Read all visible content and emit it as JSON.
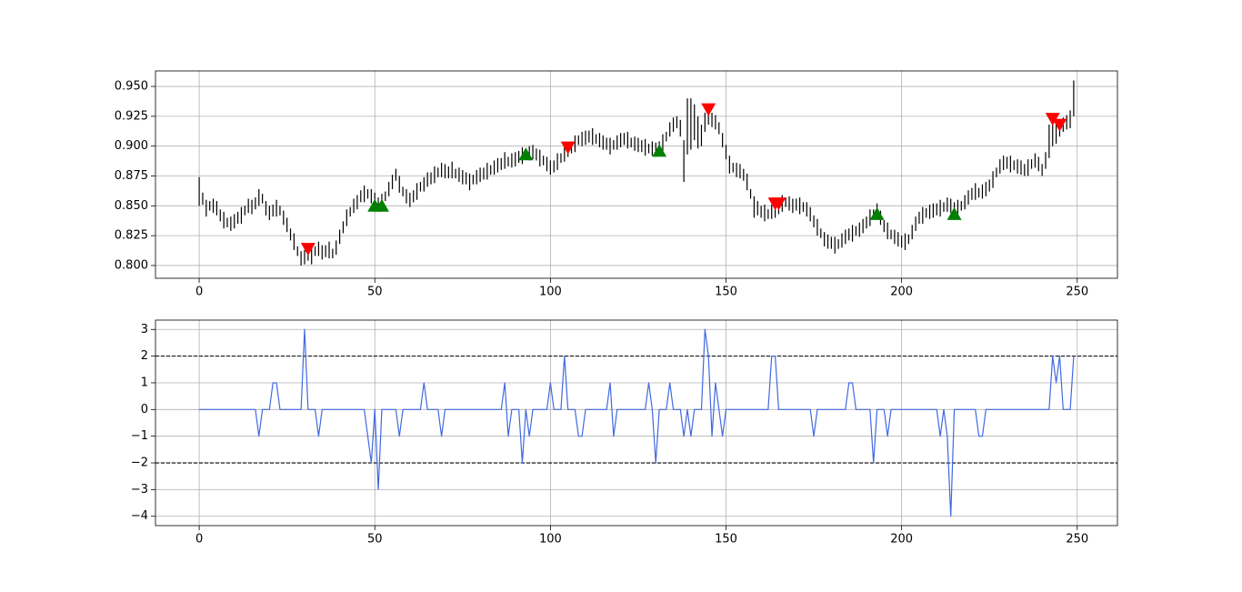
{
  "chart_data": [
    {
      "type": "ohlc",
      "color": "#000000",
      "grid": true,
      "xlim": [
        -12.45,
        261.45
      ],
      "ylim": [
        0.7893,
        0.963
      ],
      "xticks": [
        0,
        50,
        100,
        150,
        200,
        250
      ],
      "yticks": [
        {
          "value": 0.8,
          "label": "0.800"
        },
        {
          "value": 0.825,
          "label": "0.825"
        },
        {
          "value": 0.85,
          "label": "0.850"
        },
        {
          "value": 0.875,
          "label": "0.875"
        },
        {
          "value": 0.9,
          "label": "0.900"
        },
        {
          "value": 0.925,
          "label": "0.925"
        },
        {
          "value": 0.95,
          "label": "0.950"
        }
      ],
      "x": [
        0,
        1,
        2,
        3,
        4,
        5,
        6,
        7,
        8,
        9,
        10,
        11,
        12,
        13,
        14,
        15,
        16,
        17,
        18,
        19,
        20,
        21,
        22,
        23,
        24,
        25,
        26,
        27,
        28,
        29,
        30,
        31,
        32,
        33,
        34,
        35,
        36,
        37,
        38,
        39,
        40,
        41,
        42,
        43,
        44,
        45,
        46,
        47,
        48,
        49,
        50,
        51,
        52,
        53,
        54,
        55,
        56,
        57,
        58,
        59,
        60,
        61,
        62,
        63,
        64,
        65,
        66,
        67,
        68,
        69,
        70,
        71,
        72,
        73,
        74,
        75,
        76,
        77,
        78,
        79,
        80,
        81,
        82,
        83,
        84,
        85,
        86,
        87,
        88,
        89,
        90,
        91,
        92,
        93,
        94,
        95,
        96,
        97,
        98,
        99,
        100,
        101,
        102,
        103,
        104,
        105,
        106,
        107,
        108,
        109,
        110,
        111,
        112,
        113,
        114,
        115,
        116,
        117,
        118,
        119,
        120,
        121,
        122,
        123,
        124,
        125,
        126,
        127,
        128,
        129,
        130,
        131,
        132,
        133,
        134,
        135,
        136,
        137,
        138,
        139,
        140,
        141,
        142,
        143,
        144,
        145,
        146,
        147,
        148,
        149,
        150,
        151,
        152,
        153,
        154,
        155,
        156,
        157,
        158,
        159,
        160,
        161,
        162,
        163,
        164,
        165,
        166,
        167,
        168,
        169,
        170,
        171,
        172,
        173,
        174,
        175,
        176,
        177,
        178,
        179,
        180,
        181,
        182,
        183,
        184,
        185,
        186,
        187,
        188,
        189,
        190,
        191,
        192,
        193,
        194,
        195,
        196,
        197,
        198,
        199,
        200,
        201,
        202,
        203,
        204,
        205,
        206,
        207,
        208,
        209,
        210,
        211,
        212,
        213,
        214,
        215,
        216,
        217,
        218,
        219,
        220,
        221,
        222,
        223,
        224,
        225,
        226,
        227,
        228,
        229,
        230,
        231,
        232,
        233,
        234,
        235,
        236,
        237,
        238,
        239,
        240,
        241,
        242,
        243,
        244,
        245,
        246,
        247,
        248,
        249
      ],
      "low": [
        0.85,
        0.851,
        0.841,
        0.846,
        0.844,
        0.842,
        0.837,
        0.831,
        0.832,
        0.829,
        0.831,
        0.835,
        0.835,
        0.842,
        0.844,
        0.843,
        0.847,
        0.85,
        0.852,
        0.842,
        0.838,
        0.841,
        0.841,
        0.842,
        0.834,
        0.828,
        0.821,
        0.813,
        0.808,
        0.8,
        0.801,
        0.804,
        0.801,
        0.808,
        0.808,
        0.805,
        0.807,
        0.806,
        0.806,
        0.809,
        0.818,
        0.827,
        0.833,
        0.841,
        0.844,
        0.847,
        0.853,
        0.853,
        0.856,
        0.852,
        0.849,
        0.847,
        0.846,
        0.854,
        0.858,
        0.864,
        0.871,
        0.861,
        0.858,
        0.852,
        0.849,
        0.853,
        0.855,
        0.862,
        0.862,
        0.866,
        0.868,
        0.869,
        0.874,
        0.874,
        0.873,
        0.873,
        0.873,
        0.873,
        0.87,
        0.868,
        0.868,
        0.863,
        0.868,
        0.868,
        0.87,
        0.872,
        0.872,
        0.876,
        0.876,
        0.878,
        0.88,
        0.881,
        0.883,
        0.882,
        0.883,
        0.886,
        0.885,
        0.889,
        0.888,
        0.889,
        0.888,
        0.883,
        0.884,
        0.879,
        0.876,
        0.878,
        0.88,
        0.886,
        0.887,
        0.891,
        0.894,
        0.895,
        0.901,
        0.9,
        0.901,
        0.903,
        0.901,
        0.902,
        0.899,
        0.897,
        0.897,
        0.893,
        0.897,
        0.897,
        0.899,
        0.901,
        0.898,
        0.899,
        0.896,
        0.895,
        0.895,
        0.892,
        0.894,
        0.892,
        0.891,
        0.894,
        0.896,
        0.904,
        0.908,
        0.912,
        0.915,
        0.908,
        0.87,
        0.893,
        0.897,
        0.905,
        0.898,
        0.9,
        0.912,
        0.918,
        0.916,
        0.914,
        0.91,
        0.899,
        0.889,
        0.877,
        0.878,
        0.874,
        0.873,
        0.871,
        0.863,
        0.856,
        0.84,
        0.842,
        0.84,
        0.837,
        0.839,
        0.839,
        0.84,
        0.843,
        0.845,
        0.849,
        0.846,
        0.844,
        0.846,
        0.843,
        0.845,
        0.841,
        0.837,
        0.832,
        0.825,
        0.823,
        0.816,
        0.814,
        0.814,
        0.81,
        0.814,
        0.815,
        0.818,
        0.821,
        0.82,
        0.825,
        0.824,
        0.827,
        0.831,
        0.833,
        0.839,
        0.84,
        0.834,
        0.828,
        0.822,
        0.822,
        0.818,
        0.816,
        0.815,
        0.813,
        0.818,
        0.822,
        0.829,
        0.835,
        0.835,
        0.84,
        0.839,
        0.84,
        0.842,
        0.841,
        0.845,
        0.845,
        0.844,
        0.843,
        0.841,
        0.846,
        0.847,
        0.851,
        0.855,
        0.855,
        0.857,
        0.856,
        0.858,
        0.862,
        0.865,
        0.874,
        0.877,
        0.88,
        0.881,
        0.878,
        0.88,
        0.877,
        0.876,
        0.875,
        0.875,
        0.881,
        0.882,
        0.879,
        0.875,
        0.881,
        0.89,
        0.9,
        0.902,
        0.908,
        0.912,
        0.914,
        0.915,
        0.925
      ],
      "high": [
        0.874,
        0.861,
        0.855,
        0.854,
        0.856,
        0.854,
        0.847,
        0.845,
        0.84,
        0.841,
        0.843,
        0.845,
        0.849,
        0.85,
        0.856,
        0.855,
        0.857,
        0.864,
        0.86,
        0.854,
        0.85,
        0.851,
        0.855,
        0.85,
        0.846,
        0.84,
        0.831,
        0.827,
        0.816,
        0.812,
        0.813,
        0.814,
        0.815,
        0.816,
        0.82,
        0.817,
        0.817,
        0.82,
        0.814,
        0.821,
        0.83,
        0.837,
        0.847,
        0.849,
        0.856,
        0.859,
        0.863,
        0.867,
        0.864,
        0.864,
        0.861,
        0.857,
        0.86,
        0.862,
        0.87,
        0.876,
        0.881,
        0.875,
        0.866,
        0.864,
        0.861,
        0.863,
        0.869,
        0.87,
        0.874,
        0.878,
        0.878,
        0.883,
        0.882,
        0.886,
        0.885,
        0.883,
        0.887,
        0.881,
        0.882,
        0.88,
        0.878,
        0.877,
        0.876,
        0.88,
        0.882,
        0.882,
        0.886,
        0.884,
        0.888,
        0.89,
        0.89,
        0.895,
        0.891,
        0.894,
        0.895,
        0.896,
        0.899,
        0.897,
        0.9,
        0.901,
        0.898,
        0.897,
        0.892,
        0.891,
        0.888,
        0.888,
        0.894,
        0.894,
        0.899,
        0.903,
        0.904,
        0.909,
        0.909,
        0.912,
        0.913,
        0.913,
        0.915,
        0.91,
        0.911,
        0.909,
        0.907,
        0.907,
        0.905,
        0.909,
        0.911,
        0.911,
        0.912,
        0.907,
        0.908,
        0.907,
        0.905,
        0.906,
        0.902,
        0.904,
        0.903,
        0.904,
        0.91,
        0.912,
        0.92,
        0.924,
        0.925,
        0.922,
        0.905,
        0.94,
        0.94,
        0.935,
        0.925,
        0.918,
        0.928,
        0.932,
        0.928,
        0.926,
        0.92,
        0.911,
        0.901,
        0.892,
        0.886,
        0.886,
        0.885,
        0.881,
        0.877,
        0.864,
        0.858,
        0.854,
        0.85,
        0.851,
        0.847,
        0.851,
        0.852,
        0.853,
        0.859,
        0.857,
        0.858,
        0.856,
        0.856,
        0.857,
        0.853,
        0.853,
        0.849,
        0.842,
        0.839,
        0.831,
        0.828,
        0.826,
        0.824,
        0.824,
        0.822,
        0.827,
        0.83,
        0.831,
        0.834,
        0.833,
        0.836,
        0.839,
        0.841,
        0.847,
        0.847,
        0.852,
        0.846,
        0.838,
        0.836,
        0.83,
        0.83,
        0.828,
        0.825,
        0.827,
        0.826,
        0.834,
        0.841,
        0.845,
        0.849,
        0.848,
        0.851,
        0.852,
        0.852,
        0.855,
        0.853,
        0.857,
        0.856,
        0.853,
        0.855,
        0.854,
        0.859,
        0.863,
        0.865,
        0.869,
        0.865,
        0.868,
        0.87,
        0.872,
        0.879,
        0.882,
        0.889,
        0.892,
        0.891,
        0.892,
        0.888,
        0.889,
        0.888,
        0.885,
        0.889,
        0.889,
        0.894,
        0.891,
        0.885,
        0.895,
        0.918,
        0.92,
        0.922,
        0.922,
        0.924,
        0.926,
        0.93,
        0.955
      ],
      "markers": [
        {
          "marker": "^",
          "color": "#008000",
          "x": [
            50,
            52,
            93,
            131,
            193,
            215
          ],
          "y": [
            0.85,
            0.85,
            0.893,
            0.896,
            0.843,
            0.843
          ]
        },
        {
          "marker": "v",
          "color": "#ff0000",
          "x": [
            31,
            105,
            145,
            164,
            165,
            243,
            245
          ],
          "y": [
            0.814,
            0.899,
            0.931,
            0.852,
            0.852,
            0.923,
            0.918
          ]
        }
      ]
    },
    {
      "type": "line",
      "color": "#4169e1",
      "grid": true,
      "xlim": [
        -12.45,
        261.45
      ],
      "ylim": [
        -4.35,
        3.35
      ],
      "xticks": [
        0,
        50,
        100,
        150,
        200,
        250
      ],
      "yticks": [
        {
          "value": -4,
          "label": "−4"
        },
        {
          "value": -3,
          "label": "−3"
        },
        {
          "value": -2,
          "label": "−2"
        },
        {
          "value": -1,
          "label": "−1"
        },
        0,
        1,
        2,
        3
      ],
      "hlines": [
        2,
        -2
      ],
      "hline_color": "#000000",
      "x": [
        0,
        1,
        2,
        3,
        4,
        5,
        6,
        7,
        8,
        9,
        10,
        11,
        12,
        13,
        14,
        15,
        16,
        17,
        18,
        19,
        20,
        21,
        22,
        23,
        24,
        25,
        26,
        27,
        28,
        29,
        30,
        31,
        32,
        33,
        34,
        35,
        36,
        37,
        38,
        39,
        40,
        41,
        42,
        43,
        44,
        45,
        46,
        47,
        48,
        49,
        50,
        51,
        52,
        53,
        54,
        55,
        56,
        57,
        58,
        59,
        60,
        61,
        62,
        63,
        64,
        65,
        66,
        67,
        68,
        69,
        70,
        71,
        72,
        73,
        74,
        75,
        76,
        77,
        78,
        79,
        80,
        81,
        82,
        83,
        84,
        85,
        86,
        87,
        88,
        89,
        90,
        91,
        92,
        93,
        94,
        95,
        96,
        97,
        98,
        99,
        100,
        101,
        102,
        103,
        104,
        105,
        106,
        107,
        108,
        109,
        110,
        111,
        112,
        113,
        114,
        115,
        116,
        117,
        118,
        119,
        120,
        121,
        122,
        123,
        124,
        125,
        126,
        127,
        128,
        129,
        130,
        131,
        132,
        133,
        134,
        135,
        136,
        137,
        138,
        139,
        140,
        141,
        142,
        143,
        144,
        145,
        146,
        147,
        148,
        149,
        150,
        151,
        152,
        153,
        154,
        155,
        156,
        157,
        158,
        159,
        160,
        161,
        162,
        163,
        164,
        165,
        166,
        167,
        168,
        169,
        170,
        171,
        172,
        173,
        174,
        175,
        176,
        177,
        178,
        179,
        180,
        181,
        182,
        183,
        184,
        185,
        186,
        187,
        188,
        189,
        190,
        191,
        192,
        193,
        194,
        195,
        196,
        197,
        198,
        199,
        200,
        201,
        202,
        203,
        204,
        205,
        206,
        207,
        208,
        209,
        210,
        211,
        212,
        213,
        214,
        215,
        216,
        217,
        218,
        219,
        220,
        221,
        222,
        223,
        224,
        225,
        226,
        227,
        228,
        229,
        230,
        231,
        232,
        233,
        234,
        235,
        236,
        237,
        238,
        239,
        240,
        241,
        242,
        243,
        244,
        245,
        246,
        247,
        248,
        249
      ],
      "values": [
        0,
        0,
        0,
        0,
        0,
        0,
        0,
        0,
        0,
        0,
        0,
        0,
        0,
        0,
        0,
        0,
        0,
        -1,
        0,
        0,
        0,
        1,
        1,
        0,
        0,
        0,
        0,
        0,
        0,
        0,
        3,
        0,
        0,
        0,
        -1,
        0,
        0,
        0,
        0,
        0,
        0,
        0,
        0,
        0,
        0,
        0,
        0,
        0,
        -1,
        -2,
        0,
        -3,
        0,
        0,
        0,
        0,
        0,
        -1,
        0,
        0,
        0,
        0,
        0,
        0,
        1,
        0,
        0,
        0,
        0,
        -1,
        0,
        0,
        0,
        0,
        0,
        0,
        0,
        0,
        0,
        0,
        0,
        0,
        0,
        0,
        0,
        0,
        0,
        1,
        -1,
        0,
        0,
        0,
        -2,
        0,
        -1,
        0,
        0,
        0,
        0,
        0,
        1,
        0,
        0,
        0,
        2,
        0,
        0,
        0,
        -1,
        -1,
        0,
        0,
        0,
        0,
        0,
        0,
        0,
        1,
        -1,
        0,
        0,
        0,
        0,
        0,
        0,
        0,
        0,
        0,
        1,
        0,
        -2,
        0,
        0,
        0,
        1,
        0,
        0,
        0,
        -1,
        0,
        -1,
        0,
        0,
        0,
        3,
        2,
        -1,
        1,
        0,
        -1,
        0,
        0,
        0,
        0,
        0,
        0,
        0,
        0,
        0,
        0,
        0,
        0,
        0,
        2,
        2,
        0,
        0,
        0,
        0,
        0,
        0,
        0,
        0,
        0,
        0,
        -1,
        0,
        0,
        0,
        0,
        0,
        0,
        0,
        0,
        0,
        1,
        1,
        0,
        0,
        0,
        0,
        0,
        -2,
        0,
        0,
        0,
        -1,
        0,
        0,
        0,
        0,
        0,
        0,
        0,
        0,
        0,
        0,
        0,
        0,
        0,
        0,
        -1,
        0,
        -1,
        -4,
        0,
        0,
        0,
        0,
        0,
        0,
        0,
        -1,
        -1,
        0,
        0,
        0,
        0,
        0,
        0,
        0,
        0,
        0,
        0,
        0,
        0,
        0,
        0,
        0,
        0,
        0,
        0,
        0,
        2,
        1,
        2,
        0,
        0,
        0,
        2
      ]
    }
  ]
}
